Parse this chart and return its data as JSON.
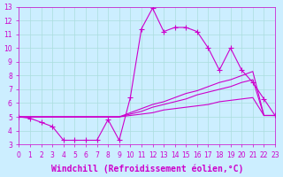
{
  "background_color": "#cceeff",
  "plot_bg_color": "#cceeff",
  "line_color": "#cc00cc",
  "grid_color": "#aadddd",
  "xlabel": "Windchill (Refroidissement éolien,°C)",
  "xlabel_color": "#cc00cc",
  "xlim": [
    0,
    23
  ],
  "ylim": [
    3,
    13
  ],
  "xticks": [
    0,
    1,
    2,
    3,
    4,
    5,
    6,
    7,
    8,
    9,
    10,
    11,
    12,
    13,
    14,
    15,
    16,
    17,
    18,
    19,
    20,
    21,
    22,
    23
  ],
  "yticks": [
    3,
    4,
    5,
    6,
    7,
    8,
    9,
    10,
    11,
    12,
    13
  ],
  "lines": [
    {
      "x": [
        0,
        1,
        2,
        3,
        4,
        5,
        6,
        7,
        8,
        9,
        10,
        11,
        12,
        13,
        14,
        15,
        16,
        17,
        18,
        19,
        20,
        21,
        22,
        23
      ],
      "y": [
        5.0,
        4.9,
        4.6,
        4.3,
        3.3,
        3.3,
        3.3,
        3.3,
        4.8,
        3.3,
        6.4,
        11.4,
        12.9,
        11.2,
        11.5,
        11.5,
        11.2,
        10.0,
        8.4,
        10.0,
        8.4,
        7.5,
        6.3,
        5.1
      ],
      "marker": "+"
    },
    {
      "x": [
        0,
        1,
        2,
        3,
        4,
        5,
        6,
        7,
        8,
        9,
        10,
        11,
        12,
        13,
        14,
        15,
        16,
        17,
        18,
        19,
        20,
        21,
        22,
        23
      ],
      "y": [
        5.0,
        5.0,
        5.0,
        5.0,
        5.0,
        5.0,
        5.0,
        5.0,
        5.0,
        5.0,
        5.3,
        5.6,
        5.9,
        6.1,
        6.4,
        6.7,
        6.9,
        7.2,
        7.5,
        7.7,
        8.0,
        8.3,
        5.1,
        5.1
      ],
      "marker": null
    },
    {
      "x": [
        0,
        1,
        2,
        3,
        4,
        5,
        6,
        7,
        8,
        9,
        10,
        11,
        12,
        13,
        14,
        15,
        16,
        17,
        18,
        19,
        20,
        21,
        22,
        23
      ],
      "y": [
        5.0,
        5.0,
        5.0,
        5.0,
        5.0,
        5.0,
        5.0,
        5.0,
        5.0,
        5.0,
        5.2,
        5.4,
        5.7,
        5.9,
        6.1,
        6.3,
        6.6,
        6.8,
        7.0,
        7.2,
        7.5,
        7.7,
        5.1,
        5.1
      ],
      "marker": null
    },
    {
      "x": [
        0,
        1,
        2,
        3,
        4,
        5,
        6,
        7,
        8,
        9,
        10,
        11,
        12,
        13,
        14,
        15,
        16,
        17,
        18,
        19,
        20,
        21,
        22,
        23
      ],
      "y": [
        5.0,
        5.0,
        5.0,
        5.0,
        5.0,
        5.0,
        5.0,
        5.0,
        5.0,
        5.0,
        5.1,
        5.2,
        5.3,
        5.5,
        5.6,
        5.7,
        5.8,
        5.9,
        6.1,
        6.2,
        6.3,
        6.4,
        5.1,
        5.1
      ],
      "marker": null
    }
  ],
  "tick_color": "#cc00cc",
  "tick_fontsize": 5.5,
  "xlabel_fontsize": 7,
  "marker_size": 4
}
